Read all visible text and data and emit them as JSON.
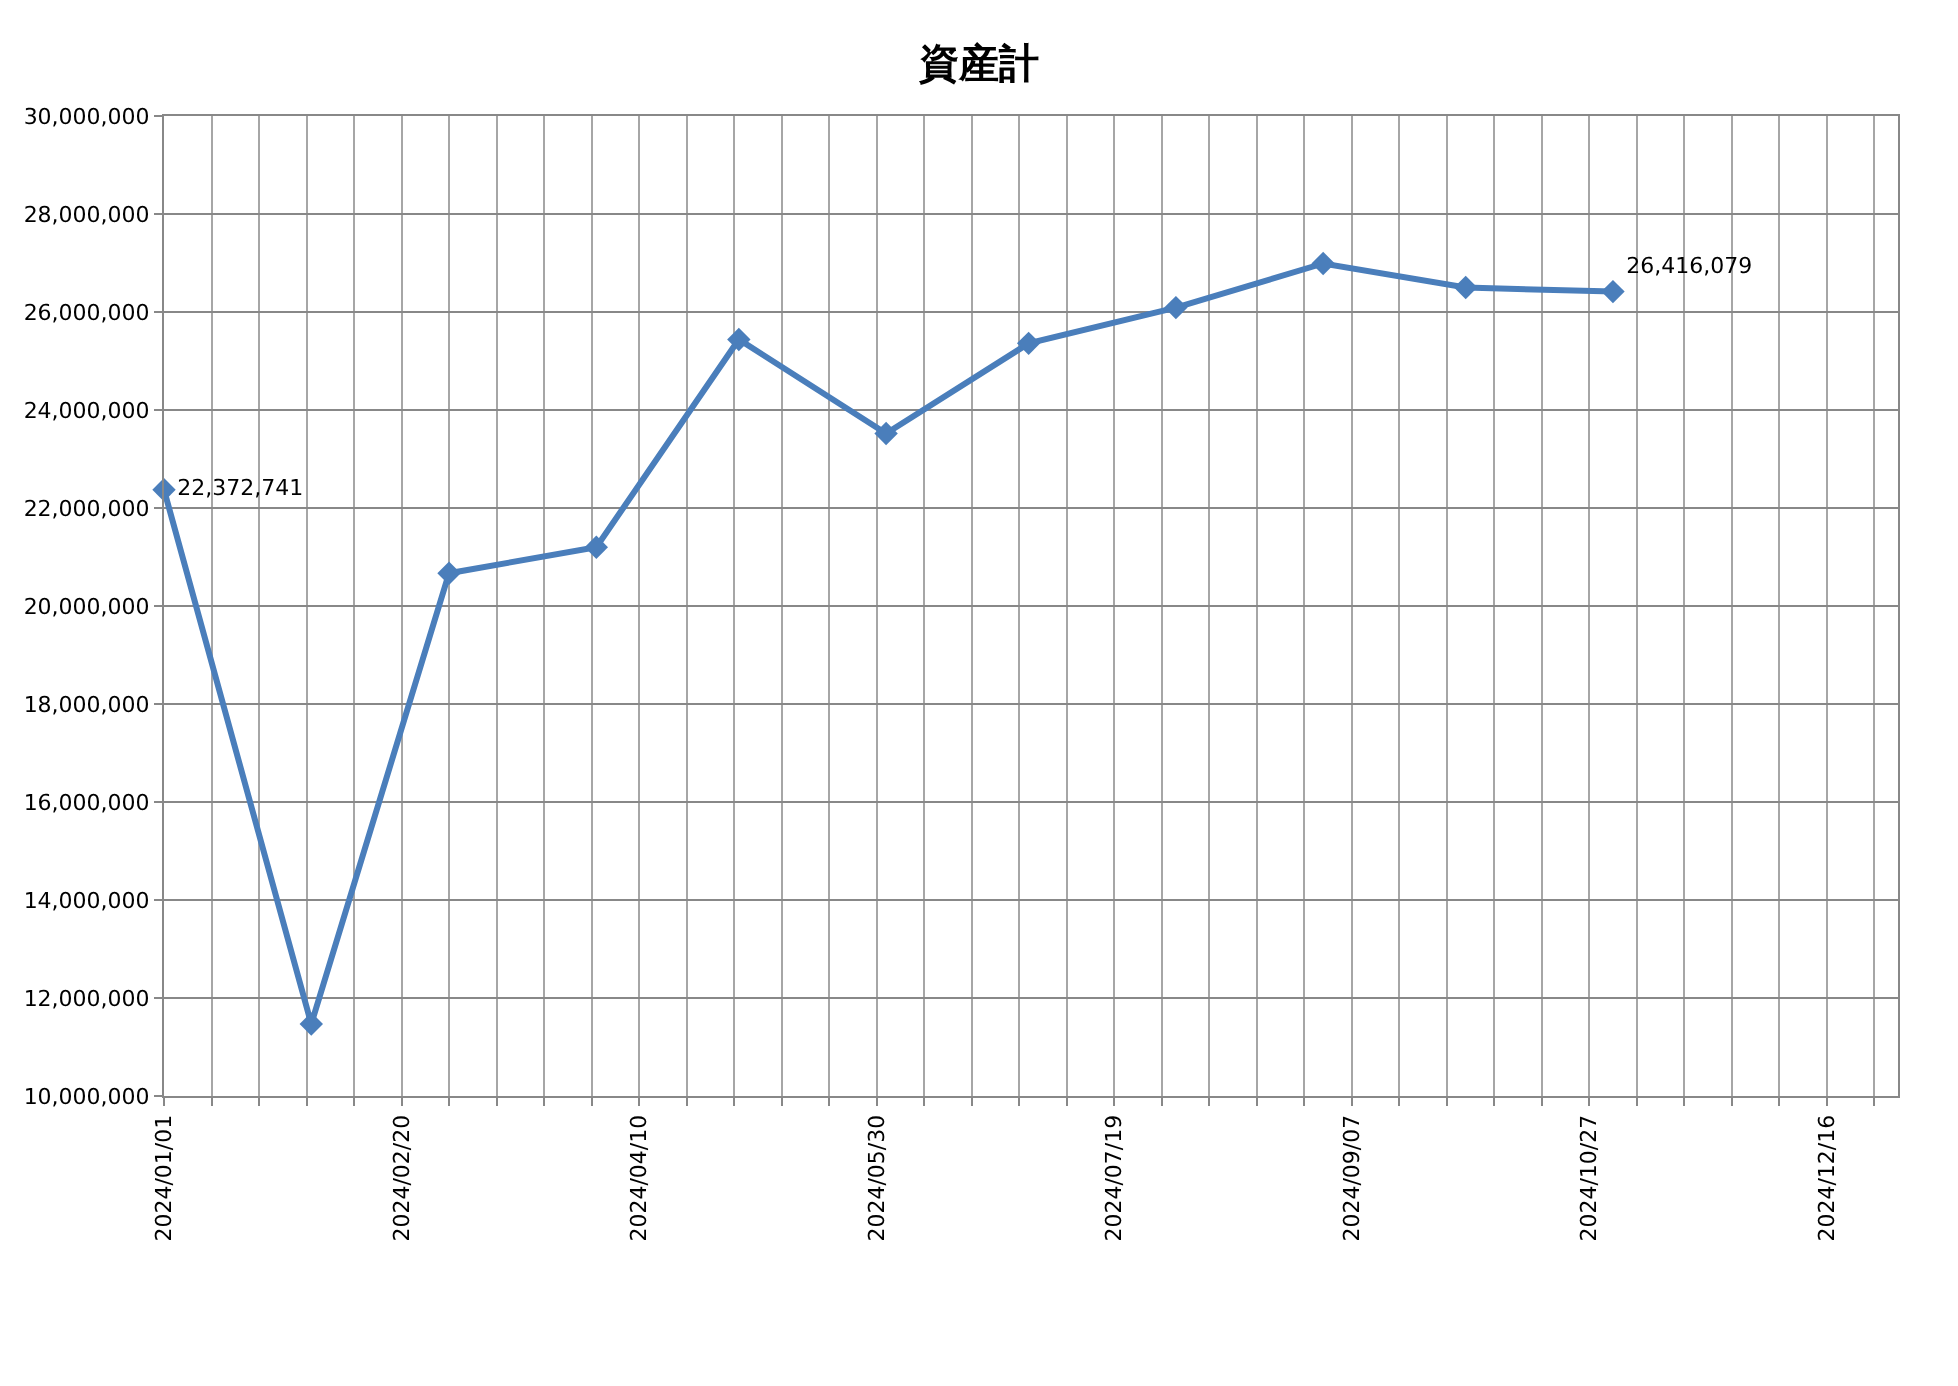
{
  "chart_data": {
    "type": "line",
    "title": "資産計",
    "x": [
      "2024-01-01",
      "2024-02-01",
      "2024-03-01",
      "2024-04-01",
      "2024-05-01",
      "2024-06-01",
      "2024-07-01",
      "2024-08-01",
      "2024-09-01",
      "2024-10-01",
      "2024-11-01"
    ],
    "series": [
      {
        "color": "#4a7ebb",
        "values": [
          22372741,
          11470000,
          20670000,
          21200000,
          25440000,
          23520000,
          25360000,
          26090000,
          26990000,
          26500000,
          26416079
        ],
        "value_labels": [
          "22,372,741",
          null,
          null,
          null,
          null,
          null,
          null,
          null,
          null,
          null,
          "26,416,079"
        ]
      }
    ],
    "xlim": [
      "2024-01-01",
      "2024-12-31"
    ],
    "xticks": [
      {
        "value": "2024-01-01",
        "label": "2024/01/01"
      },
      {
        "value": "2024-01-11",
        "label": null
      },
      {
        "value": "2024-01-21",
        "label": null
      },
      {
        "value": "2024-01-31",
        "label": null
      },
      {
        "value": "2024-02-10",
        "label": null
      },
      {
        "value": "2024-02-20",
        "label": "2024/02/20"
      },
      {
        "value": "2024-03-01",
        "label": null
      },
      {
        "value": "2024-03-11",
        "label": null
      },
      {
        "value": "2024-03-21",
        "label": null
      },
      {
        "value": "2024-03-31",
        "label": null
      },
      {
        "value": "2024-04-10",
        "label": "2024/04/10"
      },
      {
        "value": "2024-04-20",
        "label": null
      },
      {
        "value": "2024-04-30",
        "label": null
      },
      {
        "value": "2024-05-10",
        "label": null
      },
      {
        "value": "2024-05-20",
        "label": null
      },
      {
        "value": "2024-05-30",
        "label": "2024/05/30"
      },
      {
        "value": "2024-06-09",
        "label": null
      },
      {
        "value": "2024-06-19",
        "label": null
      },
      {
        "value": "2024-06-29",
        "label": null
      },
      {
        "value": "2024-07-09",
        "label": null
      },
      {
        "value": "2024-07-19",
        "label": "2024/07/19"
      },
      {
        "value": "2024-07-29",
        "label": null
      },
      {
        "value": "2024-08-08",
        "label": null
      },
      {
        "value": "2024-08-18",
        "label": null
      },
      {
        "value": "2024-08-28",
        "label": null
      },
      {
        "value": "2024-09-07",
        "label": "2024/09/07"
      },
      {
        "value": "2024-09-17",
        "label": null
      },
      {
        "value": "2024-09-27",
        "label": null
      },
      {
        "value": "2024-10-07",
        "label": null
      },
      {
        "value": "2024-10-17",
        "label": null
      },
      {
        "value": "2024-10-27",
        "label": "2024/10/27"
      },
      {
        "value": "2024-11-06",
        "label": null
      },
      {
        "value": "2024-11-16",
        "label": null
      },
      {
        "value": "2024-11-26",
        "label": null
      },
      {
        "value": "2024-12-06",
        "label": null
      },
      {
        "value": "2024-12-16",
        "label": "2024/12/16"
      },
      {
        "value": "2024-12-26",
        "label": null
      }
    ],
    "ylim": [
      10000000,
      30000000
    ],
    "yticks": [
      {
        "value": 10000000,
        "label": "10,000,000"
      },
      {
        "value": 12000000,
        "label": "12,000,000"
      },
      {
        "value": 14000000,
        "label": "14,000,000"
      },
      {
        "value": 16000000,
        "label": "16,000,000"
      },
      {
        "value": 18000000,
        "label": "18,000,000"
      },
      {
        "value": 20000000,
        "label": "20,000,000"
      },
      {
        "value": 22000000,
        "label": "22,000,000"
      },
      {
        "value": 24000000,
        "label": "24,000,000"
      },
      {
        "value": 26000000,
        "label": "26,000,000"
      },
      {
        "value": 28000000,
        "label": "28,000,000"
      },
      {
        "value": 30000000,
        "label": "30,000,000"
      }
    ],
    "grid": true,
    "marker": "diamond",
    "line_style": "solid"
  }
}
